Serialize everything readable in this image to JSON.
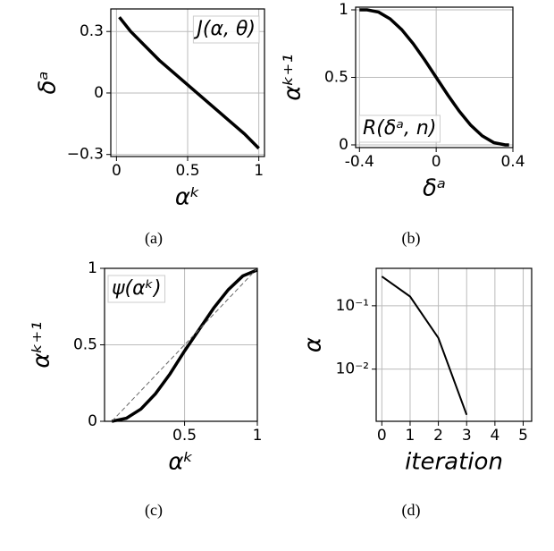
{
  "chart_data": [
    {
      "type": "line",
      "caption": "(a)",
      "xlabel": "αᵏ",
      "ylabel": "δᵃ",
      "annotation": "J(α, θ)",
      "annotation_color": "#1a7f1a",
      "annotation_corner": "upper right",
      "xlim": [
        -0.04,
        1.04
      ],
      "ylim": [
        -0.31,
        0.41
      ],
      "xticks": [
        0.0,
        0.5,
        1.0
      ],
      "yticks": [
        {
          "value": -0.3,
          "label": "−0.3"
        },
        0.0,
        0.3
      ],
      "grid": true,
      "series": [
        {
          "color": "#000000",
          "x": [
            0.02,
            0.1,
            0.2,
            0.3,
            0.4,
            0.5,
            0.6,
            0.7,
            0.8,
            0.9,
            1.0
          ],
          "values": [
            0.37,
            0.3,
            0.23,
            0.16,
            0.1,
            0.04,
            -0.02,
            -0.08,
            -0.14,
            -0.2,
            -0.27
          ]
        }
      ]
    },
    {
      "type": "line",
      "caption": "(b)",
      "xlabel": "δᵃ",
      "ylabel": "αᵏ⁺¹",
      "annotation": "R(δᵃ, n)",
      "annotation_color": "#e00000",
      "annotation_corner": "lower left",
      "xlim": [
        -0.42,
        0.4
      ],
      "ylim": [
        -0.02,
        1.02
      ],
      "xticks": [
        -0.4,
        0.0,
        0.4
      ],
      "yticks": [
        0.0,
        0.5,
        1.0
      ],
      "grid": true,
      "series": [
        {
          "color": "#000000",
          "x": [
            -0.4,
            -0.36,
            -0.3,
            -0.24,
            -0.18,
            -0.12,
            -0.06,
            0.0,
            0.06,
            0.12,
            0.18,
            0.24,
            0.3,
            0.36,
            0.38
          ],
          "values": [
            1.0,
            1.0,
            0.983,
            0.933,
            0.854,
            0.75,
            0.629,
            0.5,
            0.371,
            0.25,
            0.146,
            0.067,
            0.017,
            0.0,
            0.0
          ]
        }
      ]
    },
    {
      "type": "line",
      "caption": "(c)",
      "xlabel": "αᵏ",
      "ylabel": "αᵏ⁺¹",
      "annotation": "ψ(αᵏ)",
      "annotation_color": "#1010d0",
      "annotation_corner": "upper left",
      "xlim": [
        -0.05,
        1.0
      ],
      "ylim": [
        0.0,
        1.0
      ],
      "xticks": [
        0.5,
        1.0
      ],
      "yticks": [
        0.0,
        0.5,
        1.0
      ],
      "grid": true,
      "series": [
        {
          "color": "#000000",
          "x": [
            0.0,
            0.1,
            0.2,
            0.3,
            0.4,
            0.5,
            0.6,
            0.7,
            0.8,
            0.9,
            1.0
          ],
          "values": [
            0.0,
            0.02,
            0.08,
            0.18,
            0.31,
            0.46,
            0.6,
            0.74,
            0.86,
            0.95,
            0.99
          ]
        },
        {
          "color": "#666666",
          "dashed": true,
          "x": [
            0.0,
            1.0
          ],
          "values": [
            0.0,
            1.0
          ]
        }
      ]
    },
    {
      "type": "line",
      "caption": "(d)",
      "xlabel": "iteration",
      "ylabel": "α",
      "log_y": true,
      "xlim": [
        -0.2,
        5.3
      ],
      "ylim": [
        0.0015,
        0.39
      ],
      "xticks": [
        0,
        1,
        2,
        3,
        4,
        5
      ],
      "yticks": [
        {
          "value": 0.01,
          "label": "10⁻²"
        },
        {
          "value": 0.1,
          "label": "10⁻¹"
        }
      ],
      "grid": true,
      "series": [
        {
          "color": "#000000",
          "x": [
            0,
            1,
            2,
            3
          ],
          "values": [
            0.29,
            0.14,
            0.031,
            0.0019
          ]
        }
      ]
    }
  ]
}
